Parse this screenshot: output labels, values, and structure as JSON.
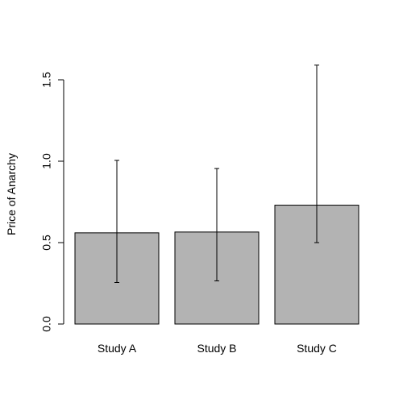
{
  "chart_data": {
    "type": "bar",
    "categories": [
      "Study A",
      "Study B",
      "Study C"
    ],
    "values": [
      0.56,
      0.565,
      0.73
    ],
    "error_bars": [
      {
        "low": 0.255,
        "high": 1.005
      },
      {
        "low": 0.265,
        "high": 0.955
      },
      {
        "low": 0.5,
        "high": 1.59
      }
    ],
    "title": "",
    "xlabel": "",
    "ylabel": "Price of Anarchy",
    "ylim": [
      0,
      1.6
    ],
    "yticks": [
      0.0,
      0.5,
      1.0,
      1.5
    ],
    "ytick_labels": [
      "0.0",
      "0.5",
      "1.0",
      "1.5"
    ],
    "bar_color": "#b3b3b3",
    "grid": false
  }
}
